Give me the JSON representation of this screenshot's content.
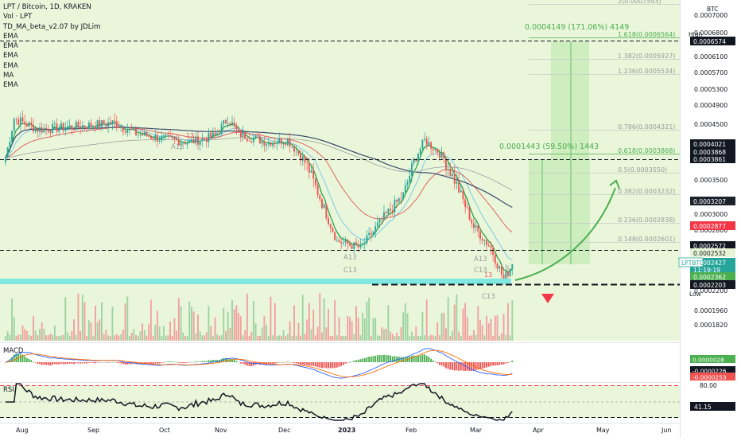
{
  "legend": {
    "title": "LPT / Bitcoin, 1D, KRAKEN",
    "vol": "Vol · LPT",
    "indicator": "TD_MA_beta_v2.07 by JDLim",
    "ma_lines": [
      "EMA",
      "EMA",
      "EMA",
      "EMA",
      "MA",
      "EMA"
    ]
  },
  "colors": {
    "bull_candle": "#26a69a",
    "bear_candle": "#ef5350",
    "green_panel": "#e7f5d6",
    "target_box": "#cfeec0",
    "cyan_zone": "#80e8e0",
    "accent_green": "#4caf50",
    "accent_red": "#f44336"
  },
  "price_axis": {
    "currency": "BTC",
    "high_label": "High",
    "low_label": "Low",
    "ticks": [
      "0.0007000",
      "0.0006800",
      "0.0006100",
      "0.0005700",
      "0.0005300",
      "0.0004900",
      "0.0004500",
      "0.0004100",
      "0.0003500",
      "0.0003000",
      "0.0002800",
      "0.0002200",
      "0.0001960",
      "0.0001820"
    ],
    "badges": [
      {
        "text": "0.0006574",
        "bg": "#131722",
        "fg": "#ffffff"
      },
      {
        "text": "0.0004021",
        "bg": "#131722",
        "fg": "#ffffff"
      },
      {
        "text": "0.0003868",
        "bg": "#131722",
        "fg": "#ffffff"
      },
      {
        "text": "0.0003861",
        "bg": "#131722",
        "fg": "#ffffff"
      },
      {
        "text": "0.0003207",
        "bg": "#1e222d",
        "fg": "#ffffff"
      },
      {
        "text": "0.0002877",
        "bg": "#f23645",
        "fg": "#ffffff"
      },
      {
        "text": "0.0002572",
        "bg": "#131722",
        "fg": "#ffffff"
      },
      {
        "text": "0.0002532",
        "bg": "#e7f5d6",
        "fg": "#131722"
      },
      {
        "text": "0.0002427",
        "bg": "#26a69a",
        "fg": "#ffffff"
      },
      {
        "text": "11:19:19",
        "bg": "#26a69a",
        "fg": "#ffffff"
      },
      {
        "text": "0.0002362",
        "bg": "#4caf50",
        "fg": "#ffffff"
      },
      {
        "text": "0.0002203",
        "bg": "#131722",
        "fg": "#ffffff"
      }
    ],
    "symbol_tag": "LPTBTC"
  },
  "fib": {
    "levels": [
      "2(0.0007593)",
      "1.618(0.0006564)",
      "1.382(0.0005927)",
      "1.236(0.0005534)",
      "0.786(0.0004321)",
      "0.618(0.0003868)",
      "0.5(0.0003550)",
      "0.382(0.0003232)",
      "0.236(0.0002838)",
      "0.148(0.0002601)"
    ]
  },
  "measures": {
    "upper": "0.0004149 (171.06%) 4149",
    "lower": "0.0001443 (59.50%) 1443"
  },
  "td_labels": [
    "A13",
    "A13",
    "C13",
    "A13",
    "C13",
    "C13",
    "13",
    "13"
  ],
  "x_axis": {
    "labels": [
      "Aug",
      "Sep",
      "Oct",
      "Nov",
      "Dec",
      "2023",
      "Feb",
      "Mar",
      "Apr",
      "May",
      "Jun"
    ]
  },
  "macd": {
    "title": "MACD",
    "badges": [
      {
        "text": "0.0000028",
        "bg": "#4caf50",
        "fg": "#ffffff"
      },
      {
        "text": "-0.0000226",
        "bg": "#131722",
        "fg": "#ffffff"
      },
      {
        "text": "-0.0000253",
        "bg": "#ef5350",
        "fg": "#ffffff"
      }
    ]
  },
  "rsi": {
    "title": "RSI",
    "levels": [
      "80.00"
    ],
    "badges": [
      {
        "text": "41.15",
        "bg": "#131722",
        "fg": "#ffffff"
      }
    ]
  },
  "chart_data": {
    "type": "candlestick",
    "symbol": "LPT / Bitcoin",
    "interval": "1D",
    "exchange": "KRAKEN",
    "unit": "BTC",
    "x_labels": [
      "Aug",
      "Sep",
      "Oct",
      "Nov",
      "Dec",
      "2023",
      "Feb",
      "Mar",
      "Apr",
      "May",
      "Jun"
    ],
    "close_path": [
      {
        "date": "2022-07-26",
        "close": 0.00039
      },
      {
        "date": "2022-07-30",
        "close": 0.00048
      },
      {
        "date": "2022-08-10",
        "close": 0.000455
      },
      {
        "date": "2022-08-25",
        "close": 0.00046
      },
      {
        "date": "2022-09-05",
        "close": 0.000465
      },
      {
        "date": "2022-09-15",
        "close": 0.00047
      },
      {
        "date": "2022-09-25",
        "close": 0.000445
      },
      {
        "date": "2022-10-05",
        "close": 0.000435
      },
      {
        "date": "2022-10-20",
        "close": 0.000425
      },
      {
        "date": "2022-11-01",
        "close": 0.00044
      },
      {
        "date": "2022-11-07",
        "close": 0.00048
      },
      {
        "date": "2022-11-12",
        "close": 0.000445
      },
      {
        "date": "2022-11-25",
        "close": 0.000425
      },
      {
        "date": "2022-12-05",
        "close": 0.00043
      },
      {
        "date": "2022-12-15",
        "close": 0.00037
      },
      {
        "date": "2022-12-28",
        "close": 0.00027
      },
      {
        "date": "2023-01-08",
        "close": 0.00026
      },
      {
        "date": "2023-01-18",
        "close": 0.0003
      },
      {
        "date": "2023-01-28",
        "close": 0.000335
      },
      {
        "date": "2023-02-07",
        "close": 0.00043
      },
      {
        "date": "2023-02-13",
        "close": 0.000405
      },
      {
        "date": "2023-02-22",
        "close": 0.00035
      },
      {
        "date": "2023-03-02",
        "close": 0.00029
      },
      {
        "date": "2023-03-10",
        "close": 0.00026
      },
      {
        "date": "2023-03-16",
        "close": 0.000225
      },
      {
        "date": "2023-03-20",
        "close": 0.000242
      }
    ],
    "levels": {
      "high": 0.0006574,
      "low": 0.0002203,
      "last": 0.0002427,
      "resistance": 0.0003861,
      "support": 0.0002572
    },
    "projections": [
      {
        "label": "0.0004149 (171.06%) 4149",
        "from": 0.0002427,
        "to": 0.0006574
      },
      {
        "label": "0.0001443 (59.50%) 1443",
        "from": 0.0002427,
        "to": 0.0003861
      }
    ],
    "macd_values": {
      "histogram": 2.8e-06,
      "macd": -2.26e-05,
      "signal": -2.53e-05
    },
    "rsi_value": 41.15,
    "rsi_upper_band": 80.0
  }
}
